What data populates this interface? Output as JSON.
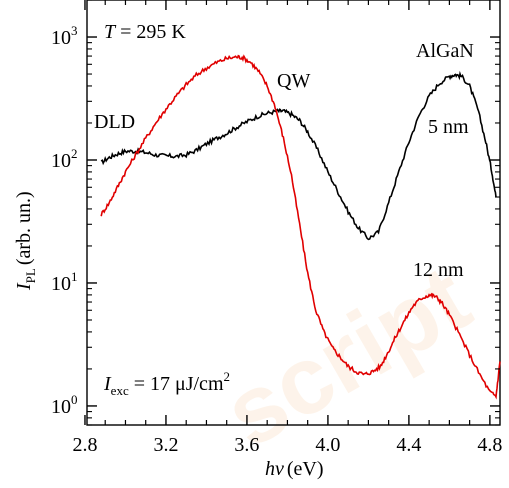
{
  "chart_data": {
    "type": "line",
    "title": "",
    "xlabel": {
      "symbol": "hν",
      "unit": "(eV)"
    },
    "ylabel": {
      "symbol": "I",
      "subscript": "PL",
      "unit": "(arb. un.)"
    },
    "xlim": [
      2.81,
      4.85
    ],
    "ylim": [
      0.7,
      2000
    ],
    "yscale": "log",
    "grid": false,
    "x_ticks": [
      2.8,
      3.2,
      3.6,
      4.0,
      4.4,
      4.8
    ],
    "x_tick_labels": [
      "2.8",
      "3.2",
      "3.6",
      "4.0",
      "4.4",
      "4.8"
    ],
    "y_ticks": [
      1,
      10,
      100,
      1000
    ],
    "y_tick_labels": [
      {
        "base": "10",
        "exp": "0"
      },
      {
        "base": "10",
        "exp": "1"
      },
      {
        "base": "10",
        "exp": "2"
      },
      {
        "base": "10",
        "exp": "3"
      }
    ],
    "annotations": {
      "temperature": {
        "symbol": "T",
        "text": " = 295 K"
      },
      "excitation": {
        "symbol": "I",
        "subscript": "exc",
        "text": " = 17 μJ/cm",
        "sup": "2"
      },
      "dld": "DLD",
      "qw": "QW",
      "algan": "AlGaN",
      "nm5": "5 nm",
      "nm12": "12 nm"
    },
    "series": [
      {
        "color": "#000000",
        "points": [
          [
            2.88,
            95
          ],
          [
            2.92,
            105
          ],
          [
            2.96,
            112
          ],
          [
            3.0,
            118
          ],
          [
            3.05,
            118
          ],
          [
            3.1,
            115
          ],
          [
            3.15,
            110
          ],
          [
            3.2,
            108
          ],
          [
            3.25,
            107
          ],
          [
            3.3,
            110
          ],
          [
            3.35,
            120
          ],
          [
            3.4,
            135
          ],
          [
            3.45,
            150
          ],
          [
            3.5,
            165
          ],
          [
            3.55,
            185
          ],
          [
            3.6,
            205
          ],
          [
            3.65,
            225
          ],
          [
            3.7,
            240
          ],
          [
            3.75,
            250
          ],
          [
            3.78,
            250
          ],
          [
            3.82,
            235
          ],
          [
            3.86,
            210
          ],
          [
            3.9,
            170
          ],
          [
            3.95,
            120
          ],
          [
            4.0,
            80
          ],
          [
            4.05,
            55
          ],
          [
            4.1,
            38
          ],
          [
            4.15,
            28
          ],
          [
            4.2,
            23
          ],
          [
            4.25,
            26
          ],
          [
            4.3,
            45
          ],
          [
            4.35,
            80
          ],
          [
            4.4,
            140
          ],
          [
            4.45,
            230
          ],
          [
            4.5,
            330
          ],
          [
            4.55,
            420
          ],
          [
            4.6,
            480
          ],
          [
            4.63,
            495
          ],
          [
            4.66,
            480
          ],
          [
            4.7,
            400
          ],
          [
            4.74,
            260
          ],
          [
            4.78,
            140
          ],
          [
            4.81,
            80
          ],
          [
            4.83,
            50
          ]
        ]
      },
      {
        "color": "#e00000",
        "points": [
          [
            2.88,
            36
          ],
          [
            2.92,
            45
          ],
          [
            2.96,
            60
          ],
          [
            3.0,
            80
          ],
          [
            3.05,
            110
          ],
          [
            3.1,
            150
          ],
          [
            3.15,
            200
          ],
          [
            3.2,
            260
          ],
          [
            3.25,
            330
          ],
          [
            3.3,
            410
          ],
          [
            3.35,
            490
          ],
          [
            3.4,
            560
          ],
          [
            3.45,
            620
          ],
          [
            3.5,
            670
          ],
          [
            3.55,
            690
          ],
          [
            3.58,
            680
          ],
          [
            3.62,
            620
          ],
          [
            3.66,
            520
          ],
          [
            3.7,
            400
          ],
          [
            3.74,
            270
          ],
          [
            3.78,
            150
          ],
          [
            3.82,
            75
          ],
          [
            3.86,
            30
          ],
          [
            3.9,
            12
          ],
          [
            3.94,
            6
          ],
          [
            3.98,
            4
          ],
          [
            4.02,
            3
          ],
          [
            4.06,
            2.5
          ],
          [
            4.1,
            2.1
          ],
          [
            4.14,
            1.9
          ],
          [
            4.18,
            1.8
          ],
          [
            4.22,
            1.9
          ],
          [
            4.26,
            2.1
          ],
          [
            4.3,
            2.8
          ],
          [
            4.34,
            3.8
          ],
          [
            4.38,
            5
          ],
          [
            4.42,
            6.5
          ],
          [
            4.46,
            7.5
          ],
          [
            4.5,
            8
          ],
          [
            4.53,
            7.8
          ],
          [
            4.56,
            7
          ],
          [
            4.6,
            5.5
          ],
          [
            4.65,
            3.8
          ],
          [
            4.7,
            2.6
          ],
          [
            4.75,
            1.8
          ],
          [
            4.8,
            1.3
          ],
          [
            4.83,
            1.2
          ],
          [
            4.85,
            2.3
          ]
        ]
      }
    ]
  }
}
